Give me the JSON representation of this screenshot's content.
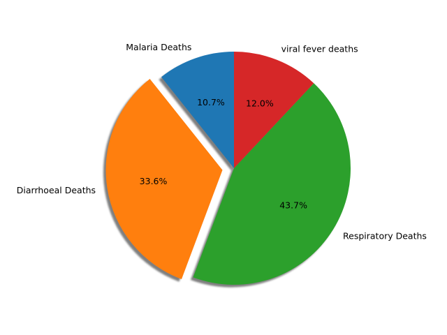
{
  "chart_data": {
    "type": "pie",
    "title": "",
    "slices": [
      {
        "label": "Malaria Deaths",
        "value": 10.7,
        "pct_label": "10.7%",
        "color": "#1f77b4",
        "explode": 0
      },
      {
        "label": "Diarrhoeal Deaths",
        "value": 33.6,
        "pct_label": "33.6%",
        "color": "#ff7f0e",
        "explode": 0.1
      },
      {
        "label": "Respiratory Deaths",
        "value": 43.7,
        "pct_label": "43.7%",
        "color": "#2ca02c",
        "explode": 0
      },
      {
        "label": "viral fever deaths",
        "value": 12.0,
        "pct_label": "12.0%",
        "color": "#d62728",
        "explode": 0
      }
    ],
    "start_angle": 90,
    "shadow": true,
    "legend": "none"
  }
}
